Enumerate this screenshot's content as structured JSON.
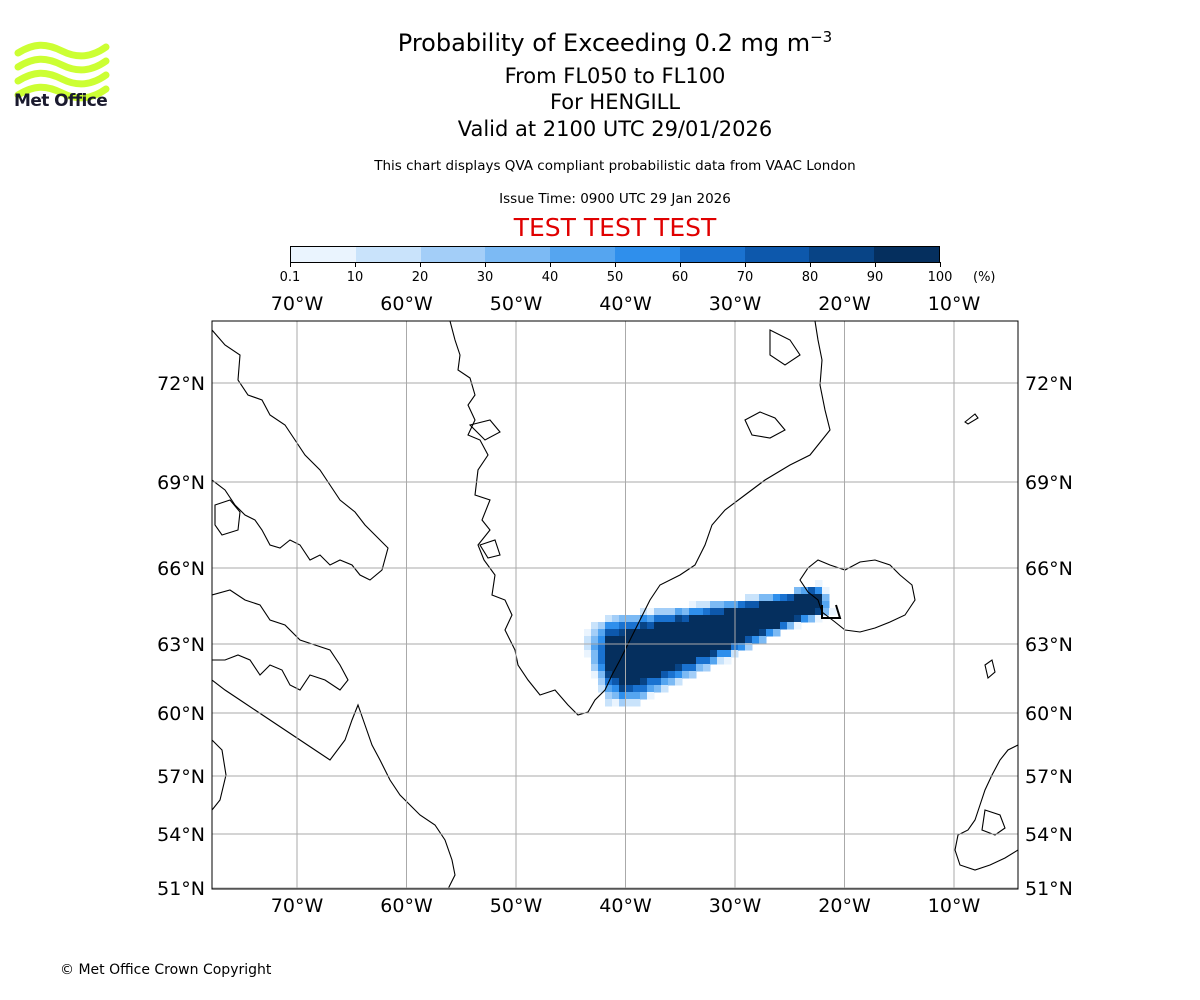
{
  "logo": {
    "text": "Met Office",
    "color": "#ccff33"
  },
  "header": {
    "title": "Probability of Exceeding 0.2 mg m",
    "title_exponent": "−3",
    "level": "From FL050 to FL100",
    "volcano": "For HENGILL",
    "valid": "Valid at 2100 UTC 29/01/2026",
    "note": "This chart displays QVA compliant probabilistic data from VAAC London",
    "issue": "Issue Time: 0900 UTC 29 Jan 2026",
    "test": "TEST TEST TEST"
  },
  "colorbar": {
    "ticks": [
      "0.1",
      "10",
      "20",
      "30",
      "40",
      "50",
      "60",
      "70",
      "80",
      "90",
      "100"
    ],
    "unit": "(%)",
    "colors": [
      "#eaf4fe",
      "#c9e3fb",
      "#a3cef8",
      "#7cbaf4",
      "#55a5f0",
      "#2f8fec",
      "#1a72d0",
      "#0d58ac",
      "#084486",
      "#052f5e"
    ]
  },
  "map": {
    "lon_labels": [
      "70°W",
      "60°W",
      "50°W",
      "40°W",
      "30°W",
      "20°W",
      "10°W"
    ],
    "lat_labels": [
      "72°N",
      "69°N",
      "66°N",
      "63°N",
      "60°N",
      "57°N",
      "54°N",
      "51°N"
    ],
    "grid_color": "#aaaaaa",
    "plume": {
      "source": "Hengill",
      "axis_start": [
        -41,
        62.2
      ],
      "axis_end": [
        -22.5,
        64.7
      ],
      "max_probability_percent": 100
    }
  },
  "footer": {
    "copyright": "© Met Office Crown Copyright"
  }
}
